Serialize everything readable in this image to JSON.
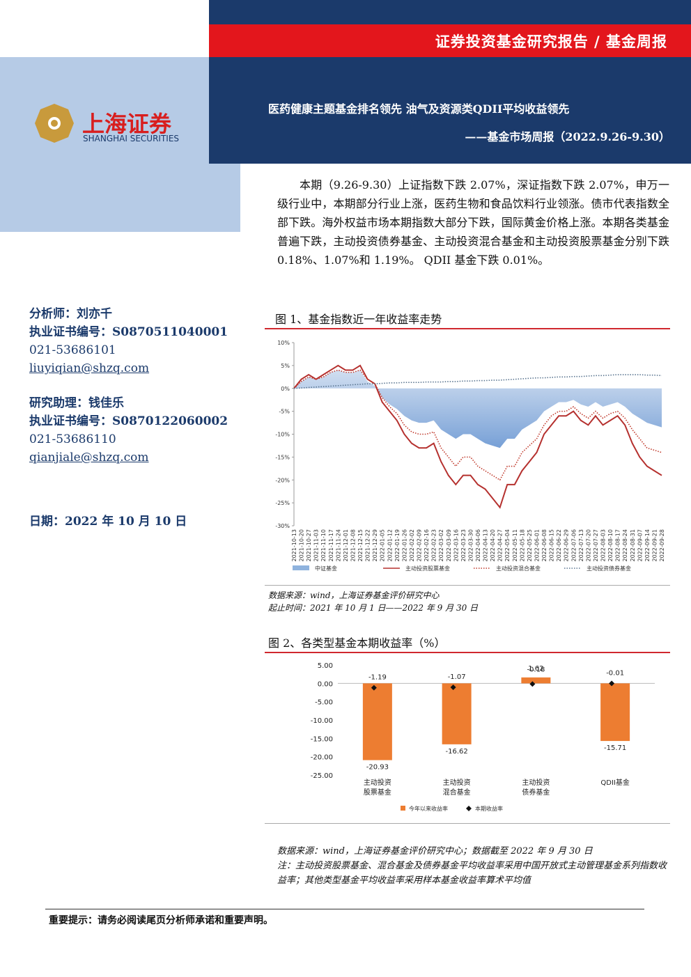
{
  "header": {
    "series": "证券投资基金研究报告 / 基金周报",
    "title": "医药健康主题基金排名领先 油气及资源类QDII平均收益领先",
    "subtitle": "——基金市场周报（2022.9.26-9.30）",
    "logo_cn": "上海证券",
    "logo_en": "SHANGHAI SECURITIES"
  },
  "sidebar": {
    "analyst": "分析师：刘亦千",
    "analyst_cert": "执业证书编号：S0870511040001",
    "analyst_phone": "021-53686101",
    "analyst_email": "liuyiqian@shzq.com",
    "assistant": "研究助理：钱佳乐",
    "assistant_cert": "执业证书编号：S0870122060002",
    "assistant_phone": "021-53686110",
    "assistant_email": "qianjiale@shzq.com",
    "date": "日期：2022 年 10 月 10 日"
  },
  "summary": "本期（9.26-9.30）上证指数下跌 2.07%，深证指数下跌 2.07%，申万一级行业中，本期部分行业上涨，医药生物和食品饮料行业领涨。债市代表指数全部下跌。海外权益市场本期指数大部分下跌，国际黄金价格上涨。本期各类基金普遍下跌，主动投资债券基金、主动投资混合基金和主动投资股票基金分别下跌 0.18%、1.07%和 1.19%。 QDII 基金下跌 0.01%。",
  "figure1": {
    "caption": "图 1、基金指数近一年收益率走势",
    "source": "数据来源：wind，上海证券基金评价研究中心",
    "period": "起止时间：2021 年 10 月 1 日——2022 年 9 月 30 日"
  },
  "figure2": {
    "caption": "图 2、各类型基金本期收益率（%）",
    "source": "数据来源：wind，上海证券基金评价研究中心；数据截至 2022 年 9 月 30 日",
    "note": "注：主动投资股票基金、混合基金及债券基金平均收益率采用中国开放式主动管理基金系列指数收益率；其他类型基金平均收益率采用样本基金收益率算术平均值"
  },
  "footer": "重要提示：请务必阅读尾页分析师承诺和重要声明。",
  "chart_data": [
    {
      "type": "line",
      "categories": [
        "2021-10-13",
        "2021-10-20",
        "2021-10-27",
        "2021-11-03",
        "2021-11-10",
        "2021-11-17",
        "2021-11-24",
        "2021-12-01",
        "2021-12-08",
        "2021-12-15",
        "2021-12-22",
        "2021-12-29",
        "2022-01-05",
        "2022-01-12",
        "2022-01-19",
        "2022-01-26",
        "2022-02-02",
        "2022-02-09",
        "2022-02-16",
        "2022-02-23",
        "2022-03-02",
        "2022-03-09",
        "2022-03-16",
        "2022-03-23",
        "2022-03-30",
        "2022-04-06",
        "2022-04-13",
        "2022-04-20",
        "2022-04-27",
        "2022-05-04",
        "2022-05-11",
        "2022-05-18",
        "2022-05-25",
        "2022-06-01",
        "2022-06-08",
        "2022-06-15",
        "2022-06-22",
        "2022-06-29",
        "2022-07-06",
        "2022-07-13",
        "2022-07-20",
        "2022-07-27",
        "2022-08-03",
        "2022-08-10",
        "2022-08-17",
        "2022-08-24",
        "2022-08-31",
        "2022-09-07",
        "2022-09-14",
        "2022-09-21",
        "2022-09-28"
      ],
      "series": [
        {
          "name": "中证基金",
          "color": "#8fb3de",
          "style": "area",
          "values": [
            0,
            1.5,
            2.5,
            2,
            2.5,
            3.5,
            4,
            3.5,
            3.5,
            4,
            1.5,
            0.5,
            -2,
            -3.5,
            -4.5,
            -6,
            -7,
            -7.5,
            -7.5,
            -7,
            -9,
            -10,
            -11,
            -10,
            -10,
            -11,
            -12,
            -12.5,
            -13,
            -11,
            -11,
            -9,
            -8,
            -7,
            -5,
            -4,
            -3,
            -3,
            -2.5,
            -3.5,
            -4,
            -3,
            -4,
            -3.5,
            -3,
            -4,
            -5.5,
            -6.5,
            -7.5,
            -8,
            -8.5
          ]
        },
        {
          "name": "主动投资股票基金",
          "color": "#b5302e",
          "style": "solid",
          "values": [
            0,
            2,
            3,
            2,
            3,
            4,
            5,
            4,
            4,
            5,
            2,
            1,
            -3,
            -5,
            -7,
            -10,
            -12,
            -13,
            -13,
            -12,
            -16,
            -19,
            -21,
            -19,
            -19,
            -21,
            -22,
            -24,
            -26,
            -21,
            -21,
            -18,
            -16,
            -14,
            -10,
            -8,
            -6,
            -6,
            -5,
            -7,
            -8,
            -6,
            -8,
            -7,
            -6,
            -8,
            -12,
            -15,
            -17,
            -18,
            -19
          ]
        },
        {
          "name": "主动投资混合基金",
          "color": "#c0392b",
          "style": "dotted",
          "values": [
            0,
            1.5,
            2.5,
            2,
            2.5,
            3.5,
            4,
            3.5,
            3.5,
            4,
            2,
            1,
            -2,
            -4,
            -5.5,
            -8,
            -9.5,
            -10,
            -10,
            -9.5,
            -13,
            -15,
            -17,
            -15,
            -15,
            -17,
            -18,
            -19,
            -20,
            -17,
            -17,
            -14,
            -12.5,
            -11,
            -8,
            -6,
            -5,
            -5,
            -4,
            -5.5,
            -6.5,
            -5,
            -6.5,
            -5.5,
            -5,
            -6.5,
            -9,
            -11,
            -13,
            -13.5,
            -14
          ]
        },
        {
          "name": "主动投资债券基金",
          "color": "#5a7590",
          "style": "dotted",
          "values": [
            0,
            0.1,
            0.2,
            0.3,
            0.4,
            0.5,
            0.6,
            0.7,
            0.8,
            0.9,
            1,
            1,
            1.1,
            1.2,
            1.2,
            1.3,
            1.3,
            1.3,
            1.4,
            1.4,
            1.4,
            1.5,
            1.5,
            1.6,
            1.6,
            1.7,
            1.7,
            1.8,
            1.8,
            1.9,
            2,
            2.1,
            2.2,
            2.3,
            2.3,
            2.4,
            2.5,
            2.5,
            2.6,
            2.6,
            2.7,
            2.8,
            2.8,
            2.9,
            3,
            3,
            3,
            3,
            2.9,
            2.9,
            2.8
          ]
        }
      ],
      "ylim": [
        -30,
        10
      ],
      "yticks": [
        {
          "value": 10,
          "label": "10%"
        },
        {
          "value": 5,
          "label": "5%"
        },
        {
          "value": 0,
          "label": "0%"
        },
        {
          "value": -5,
          "label": "-5%"
        },
        {
          "value": -10,
          "label": "-10%"
        },
        {
          "value": -15,
          "label": "-15%"
        },
        {
          "value": -20,
          "label": "-20%"
        },
        {
          "value": -25,
          "label": "-25%"
        },
        {
          "value": -30,
          "label": "-30%"
        }
      ]
    },
    {
      "type": "bar",
      "categories": [
        "主动投资\n股票基金",
        "主动投资\n混合基金",
        "主动投资\n债券基金",
        "QDII基金"
      ],
      "series": [
        {
          "name": "今年以来收益率",
          "color": "#ed7d31",
          "style": "bar",
          "values": [
            -20.93,
            -16.62,
            1.62,
            -15.71
          ]
        },
        {
          "name": "本期收益率",
          "color": "#111111",
          "style": "diamond",
          "values": [
            -1.19,
            -1.07,
            -0.18,
            -0.01
          ]
        }
      ],
      "ylim": [
        -25,
        5
      ],
      "yticks": [
        {
          "value": 5,
          "label": "5.00"
        },
        {
          "value": 0,
          "label": "0.00"
        },
        {
          "value": -5,
          "label": "-5.00"
        },
        {
          "value": -10,
          "label": "-10.00"
        },
        {
          "value": -15,
          "label": "-15.00"
        },
        {
          "value": -20,
          "label": "-20.00"
        },
        {
          "value": -25,
          "label": "-25.00"
        }
      ]
    }
  ]
}
